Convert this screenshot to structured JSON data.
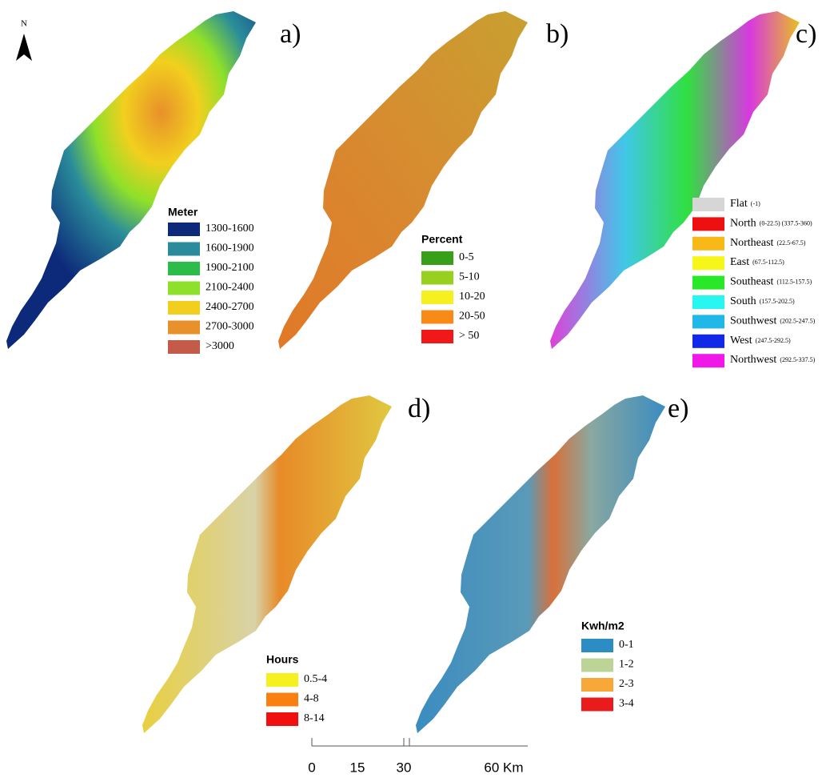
{
  "north_arrow": "N",
  "panels": [
    {
      "label": "a)",
      "legend_title": "Meter",
      "items": [
        {
          "name": "1300-1600",
          "color": "#0d2a7a"
        },
        {
          "name": "1600-1900",
          "color": "#2a8c9a"
        },
        {
          "name": "1900-2100",
          "color": "#2cbc4a"
        },
        {
          "name": "2100-2400",
          "color": "#8ee02a"
        },
        {
          "name": "2400-2700",
          "color": "#f2cf1e"
        },
        {
          "name": "2700-3000",
          "color": "#e8902a"
        },
        {
          "name": ">3000",
          "color": "#c45a48"
        }
      ]
    },
    {
      "label": "b)",
      "legend_title": "Percent",
      "items": [
        {
          "name": "0-5",
          "color": "#38a018"
        },
        {
          "name": "5-10",
          "color": "#98d020"
        },
        {
          "name": "10-20",
          "color": "#f6f020"
        },
        {
          "name": "20-50",
          "color": "#f88a18"
        },
        {
          "name": "> 50",
          "color": "#f01818"
        }
      ]
    },
    {
      "label": "c)",
      "legend_title": null,
      "items": [
        {
          "name": "Flat",
          "range": "(-1)",
          "color": "#d6d6d6"
        },
        {
          "name": "North",
          "range": "(0-22.5) (337.5-360)",
          "color": "#ee1010"
        },
        {
          "name": "Northeast",
          "range": "(22.5-67.5)",
          "color": "#f8b818"
        },
        {
          "name": "East",
          "range": "(67.5-112.5)",
          "color": "#f6f618"
        },
        {
          "name": "Southeast",
          "range": "(112.5-157.5)",
          "color": "#28e828"
        },
        {
          "name": "South",
          "range": "(157.5-202.5)",
          "color": "#28f6f0"
        },
        {
          "name": "Southwest",
          "range": "(202.5-247.5)",
          "color": "#20b8e8"
        },
        {
          "name": "West",
          "range": "(247.5-292.5)",
          "color": "#1028e8"
        },
        {
          "name": "Northwest",
          "range": "(292.5-337.5)",
          "color": "#f018e8"
        }
      ]
    },
    {
      "label": "d)",
      "legend_title": "Hours",
      "items": [
        {
          "name": "0.5-4",
          "color": "#f6f020"
        },
        {
          "name": "4-8",
          "color": "#f88010"
        },
        {
          "name": "8-14",
          "color": "#f01010"
        }
      ]
    },
    {
      "label": "e)",
      "legend_title": "Kwh/m2",
      "items": [
        {
          "name": "0-1",
          "color": "#2c8cc4"
        },
        {
          "name": "1-2",
          "color": "#bcd496"
        },
        {
          "name": "2-3",
          "color": "#f8a838"
        },
        {
          "name": "3-4",
          "color": "#e81c1c"
        }
      ]
    }
  ],
  "scale_bar": [
    "0",
    "15",
    "30",
    "60 Km"
  ]
}
